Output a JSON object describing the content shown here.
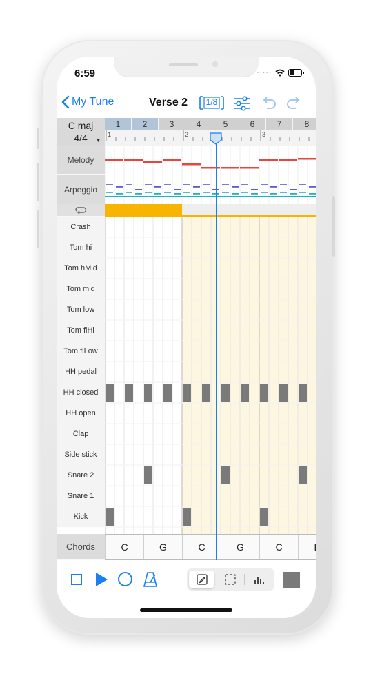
{
  "status": {
    "time": "6:59"
  },
  "nav": {
    "back_label": "My Tune",
    "title": "Verse 2",
    "grid_value": "1/8"
  },
  "header": {
    "key": "C maj",
    "time_signature": "4/4"
  },
  "ruler": {
    "bars": [
      {
        "label": "1",
        "loop": true
      },
      {
        "label": "2",
        "loop": true
      },
      {
        "label": "3",
        "loop": false
      },
      {
        "label": "4",
        "loop": false
      },
      {
        "label": "5",
        "loop": false
      },
      {
        "label": "6",
        "loop": false
      },
      {
        "label": "7",
        "loop": false
      },
      {
        "label": "8",
        "loop": false
      }
    ],
    "markers": [
      "1",
      "2",
      "3"
    ]
  },
  "tracks": {
    "melody": "Melody",
    "arpeggio": "Arpeggio"
  },
  "drums": [
    "Crash",
    "Tom hi",
    "Tom hMid",
    "Tom mid",
    "Tom low",
    "Tom flHi",
    "Tom flLow",
    "HH pedal",
    "HH closed",
    "HH open",
    "Clap",
    "Side stick",
    "Snare 2",
    "Snare 1",
    "Kick"
  ],
  "pattern": {
    "HH closed": [
      0,
      2,
      4,
      6,
      8,
      10,
      12,
      14,
      16,
      18,
      20
    ],
    "Snare 2": [
      4,
      12,
      20
    ],
    "Kick": [
      0,
      8,
      16
    ]
  },
  "chords": {
    "label": "Chords",
    "values": [
      "C",
      "G",
      "C",
      "G",
      "C",
      "D"
    ]
  },
  "colors": {
    "accent": "#1a7ff0",
    "melody": "#e8453c",
    "arpeggio": "#5a5ad0",
    "arpeggio2": "#1fb0c8",
    "loop": "#f7b500",
    "highlight": "#fdf7e2",
    "step": "#7a7a7a"
  },
  "playhead_step": 11.5
}
